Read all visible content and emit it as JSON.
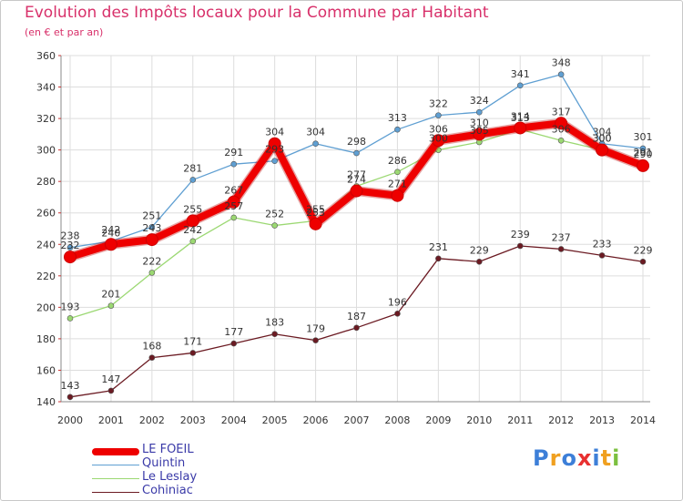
{
  "header": {
    "title": "Evolution des Impôts locaux pour la Commune par Habitant",
    "subtitle": "(en € et par an)"
  },
  "chart_data": {
    "type": "line",
    "title": "Evolution des Impôts locaux pour la Commune par Habitant",
    "subtitle": "(en € et par an)",
    "xlabel": "",
    "ylabel": "",
    "categories": [
      "2000",
      "2001",
      "2002",
      "2003",
      "2004",
      "2005",
      "2006",
      "2007",
      "2008",
      "2009",
      "2010",
      "2011",
      "2012",
      "2013",
      "2014"
    ],
    "ylim": [
      140,
      360
    ],
    "yticks": [
      140,
      160,
      180,
      200,
      220,
      240,
      260,
      280,
      300,
      320,
      340,
      360
    ],
    "grid": true,
    "legend_position": "bottom-left",
    "series": [
      {
        "name": "LE FOEIL",
        "color": "#ee0000",
        "values": [
          232,
          240,
          243,
          255,
          267,
          304,
          253,
          274,
          271,
          306,
          310,
          314,
          317,
          300,
          290
        ]
      },
      {
        "name": "Quintin",
        "color": "#5f9fd2",
        "values": [
          238,
          242,
          251,
          281,
          291,
          293,
          304,
          298,
          313,
          322,
          324,
          341,
          348,
          304,
          301
        ]
      },
      {
        "name": "Le Leslay",
        "color": "#9bd872",
        "values": [
          193,
          201,
          222,
          242,
          257,
          252,
          255,
          277,
          286,
          300,
          305,
          313,
          306,
          300,
          291
        ]
      },
      {
        "name": "Cohiniac",
        "color": "#6b1a22",
        "values": [
          143,
          147,
          168,
          171,
          177,
          183,
          179,
          187,
          196,
          231,
          229,
          239,
          237,
          233,
          229
        ]
      }
    ]
  },
  "legend": {
    "items": [
      {
        "label": "LE FOEIL",
        "color": "#ee0000"
      },
      {
        "label": "Quintin",
        "color": "#5f9fd2"
      },
      {
        "label": "Le Leslay",
        "color": "#9bd872"
      },
      {
        "label": "Cohiniac",
        "color": "#6b1a22"
      }
    ]
  },
  "logo": {
    "letters": [
      "P",
      "r",
      "o",
      "x",
      "i",
      "t",
      "i"
    ],
    "colors": [
      "#3d7fd8",
      "#f0a020",
      "#3d7fd8",
      "#e83030",
      "#3d7fd8",
      "#f0a020",
      "#7cc040"
    ]
  }
}
